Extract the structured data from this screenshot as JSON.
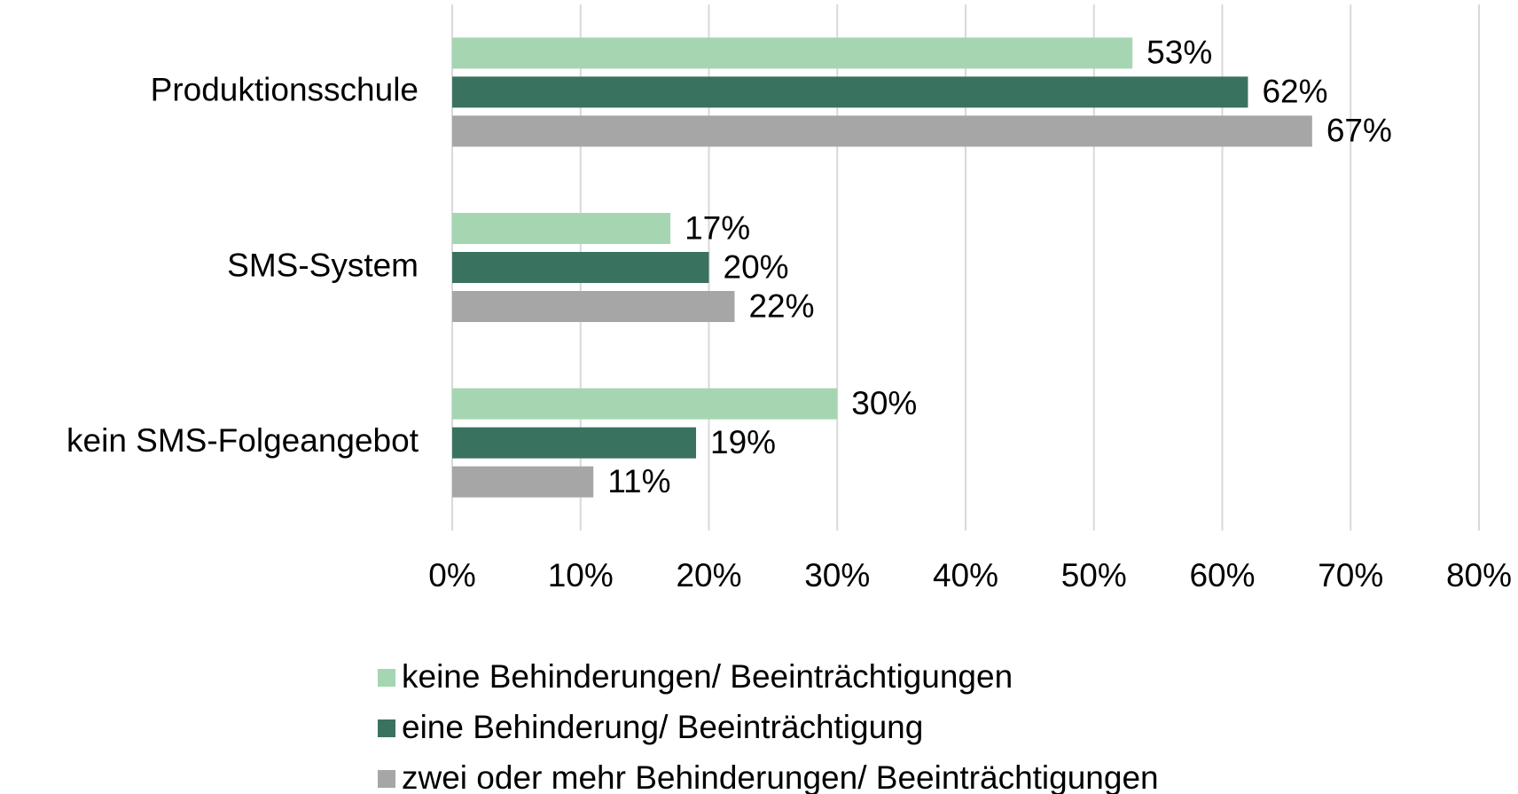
{
  "chart_data": {
    "type": "hbar",
    "categories": [
      "Produktionsschule",
      "SMS-System",
      "kein SMS-Folgeangebot"
    ],
    "series": [
      {
        "name": "keine Behinderungen/ Beeinträchtigungen",
        "color": "#a6d5b2",
        "values": [
          53,
          17,
          30
        ],
        "value_labels": [
          "53%",
          "17%",
          "30%"
        ]
      },
      {
        "name": "eine Behinderung/ Beeinträchtigung",
        "color": "#3a7260",
        "values": [
          62,
          20,
          19
        ],
        "value_labels": [
          "62%",
          "20%",
          "19%"
        ]
      },
      {
        "name": "zwei oder mehr Behinderungen/ Beeinträchtigungen",
        "color": "#a6a6a6",
        "values": [
          67,
          22,
          11
        ],
        "value_labels": [
          "67%",
          "22%",
          "11%"
        ]
      }
    ],
    "xlim": [
      0,
      80
    ],
    "xticks": [
      {
        "value": 0,
        "label": "0%"
      },
      {
        "value": 10,
        "label": "10%"
      },
      {
        "value": 20,
        "label": "20%"
      },
      {
        "value": 30,
        "label": "30%"
      },
      {
        "value": 40,
        "label": "40%"
      },
      {
        "value": 50,
        "label": "50%"
      },
      {
        "value": 60,
        "label": "60%"
      },
      {
        "value": 70,
        "label": "70%"
      },
      {
        "value": 80,
        "label": "80%"
      }
    ],
    "grid": true,
    "legend": "bottom"
  }
}
